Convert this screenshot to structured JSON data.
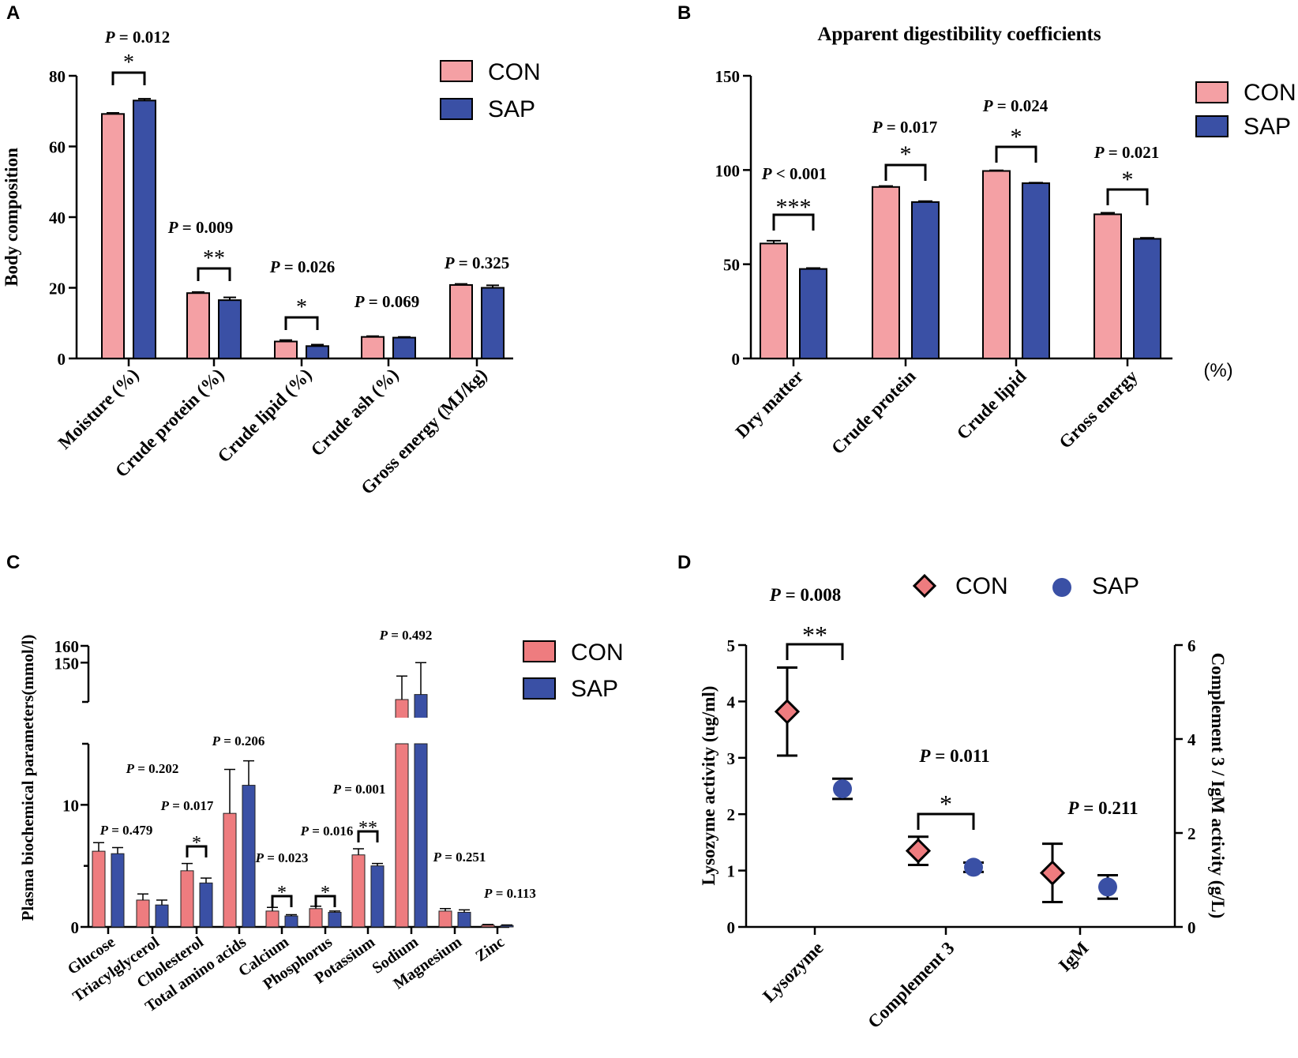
{
  "colors": {
    "con": "#F4A0A4",
    "con_c": "#EE7C7F",
    "sap": "#3A50A5",
    "ink": "#000000"
  },
  "chart_data": [
    {
      "panel": "A",
      "type": "bar",
      "title": "",
      "xlabel": "",
      "ylabel": "Body composition",
      "ylim": [
        0,
        80
      ],
      "yticks": [
        "0",
        "20",
        "40",
        "60",
        "80"
      ],
      "categories": [
        "Moisture (%)",
        "Crude protein (%)",
        "Crude lipid (%)",
        "Crude ash (%)",
        "Gross energy (MJ/kg)"
      ],
      "series": [
        {
          "name": "CON",
          "values": [
            69.2,
            18.5,
            4.8,
            6.1,
            20.8
          ],
          "errors": [
            0.3,
            0.3,
            0.4,
            0.2,
            0.3
          ]
        },
        {
          "name": "SAP",
          "values": [
            73.0,
            16.5,
            3.5,
            5.9,
            20.0
          ],
          "errors": [
            0.5,
            0.8,
            0.4,
            0.2,
            0.7
          ]
        }
      ],
      "pvalues": [
        "P = 0.012",
        "P = 0.009",
        "P = 0.026",
        "P = 0.069",
        "P = 0.325"
      ],
      "stars": [
        "*",
        "**",
        "*",
        "",
        ""
      ],
      "legend": [
        "CON",
        "SAP"
      ],
      "legend_position": "top-right"
    },
    {
      "panel": "B",
      "type": "bar",
      "title": "Apparent digestibility coefficients",
      "xlabel": "",
      "ylabel": "",
      "unit": "(%)",
      "ylim": [
        0,
        150
      ],
      "yticks": [
        "0",
        "50",
        "100",
        "150"
      ],
      "categories": [
        "Dry matter",
        "Crude protein",
        "Crude lipid",
        "Gross energy"
      ],
      "series": [
        {
          "name": "CON",
          "values": [
            61.0,
            91.0,
            99.5,
            76.5
          ],
          "errors": [
            1.5,
            0.5,
            0.3,
            0.8
          ]
        },
        {
          "name": "SAP",
          "values": [
            47.5,
            83.0,
            93.0,
            63.5
          ],
          "errors": [
            0.5,
            0.5,
            0.3,
            0.5
          ]
        }
      ],
      "pvalues": [
        "P < 0.001",
        "P = 0.017",
        "P = 0.024",
        "P = 0.021"
      ],
      "stars": [
        "***",
        "*",
        "*",
        "*"
      ],
      "legend": [
        "CON",
        "SAP"
      ],
      "legend_position": "top-right"
    },
    {
      "panel": "C",
      "type": "bar",
      "title": "",
      "xlabel": "",
      "ylabel": "Plasma biochemical parameters(mmol/l)",
      "ylim": [
        0,
        160
      ],
      "axis_break": [
        15,
        120
      ],
      "yticks": [
        "0",
        "10",
        "150",
        "160"
      ],
      "categories": [
        "Glucose",
        "Triacylglycerol",
        "Cholesterol",
        "Total amino acids",
        "Calcium",
        "Phosphorus",
        "Potassium",
        "Sodium",
        "Magnesium",
        "Zinc"
      ],
      "series": [
        {
          "name": "CON",
          "values": [
            6.2,
            2.2,
            4.6,
            9.3,
            1.3,
            1.5,
            5.9,
            128,
            1.3,
            0.15
          ],
          "errors": [
            0.7,
            0.5,
            0.6,
            3.6,
            0.3,
            0.2,
            0.5,
            14,
            0.2,
            0.05
          ]
        },
        {
          "name": "SAP",
          "values": [
            6.0,
            1.8,
            3.6,
            11.6,
            0.9,
            1.2,
            5.0,
            131,
            1.2,
            0.12
          ],
          "errors": [
            0.5,
            0.4,
            0.4,
            2.0,
            0.1,
            0.1,
            0.2,
            19,
            0.2,
            0.04
          ]
        }
      ],
      "pvalues": [
        "P = 0.479",
        "P = 0.202",
        "P = 0.017",
        "P = 0.206",
        "P = 0.023",
        "P = 0.016",
        "P = 0.001",
        "P = 0.492",
        "P = 0.251",
        "P = 0.113"
      ],
      "stars": [
        "",
        "",
        "*",
        "",
        "*",
        "*",
        "**",
        "",
        "",
        ""
      ],
      "legend": [
        "CON",
        "SAP"
      ],
      "legend_position": "top-right"
    },
    {
      "panel": "D",
      "type": "scatter",
      "title": "",
      "xlabel": "",
      "ylabel": "Lysozyme activity (ug/ml)",
      "ylabel_right": "Complement 3 / IgM activity (g/L)",
      "ylim": [
        0,
        5
      ],
      "ylim_right": [
        0,
        6
      ],
      "yticks": [
        "0",
        "1",
        "2",
        "3",
        "4",
        "5"
      ],
      "yticks_right": [
        "0",
        "2",
        "4",
        "6"
      ],
      "categories": [
        "Lysozyme",
        "Complement 3",
        "IgM"
      ],
      "series": [
        {
          "name": "CON",
          "marker": "diamond",
          "values": [
            3.82,
            1.62,
            1.15
          ],
          "errors": [
            0.78,
            0.3,
            0.62
          ],
          "axis": [
            "left",
            "right",
            "right"
          ]
        },
        {
          "name": "SAP",
          "marker": "circle",
          "values": [
            2.45,
            1.27,
            0.85
          ],
          "errors": [
            0.18,
            0.1,
            0.25
          ],
          "axis": [
            "left",
            "right",
            "right"
          ]
        }
      ],
      "pvalues": [
        "P = 0.008",
        "P = 0.011",
        "P = 0.211"
      ],
      "stars": [
        "**",
        "*",
        ""
      ],
      "legend": [
        "CON",
        "SAP"
      ],
      "legend_position": "top"
    }
  ]
}
